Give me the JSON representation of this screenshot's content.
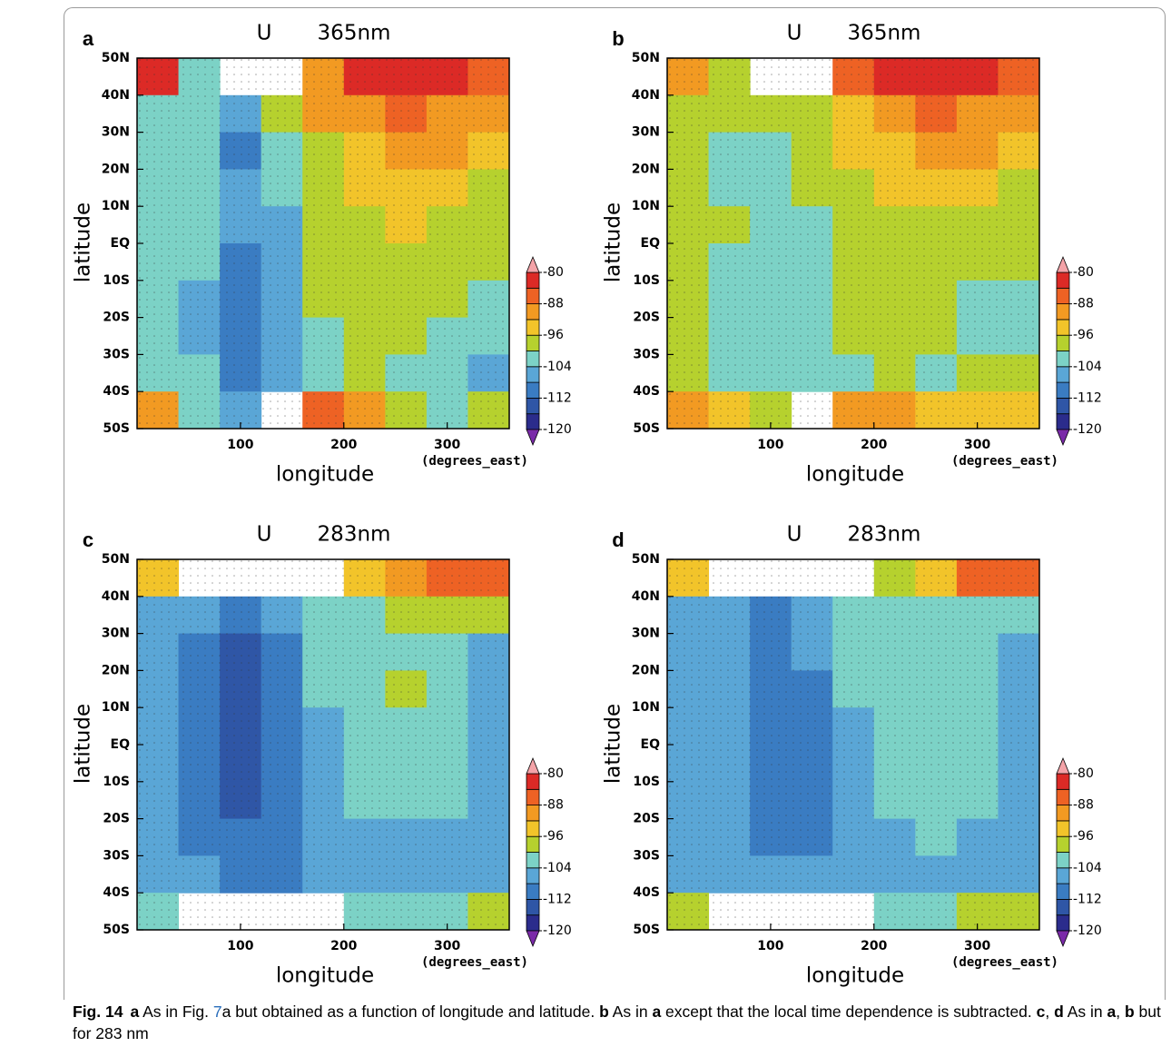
{
  "chart_data": [
    {
      "type": "contour",
      "panel": "a",
      "title": "U",
      "level": "365nm",
      "xlabel": "longitude",
      "xunit": "(degrees_east)",
      "ylabel": "latitude",
      "xlim": [
        0,
        360
      ],
      "xticks": [
        100,
        200,
        300
      ],
      "ylim": [
        -50,
        50
      ],
      "yticks": [
        {
          "value": 50,
          "label": "50N"
        },
        {
          "value": 40,
          "label": "40N"
        },
        {
          "value": 30,
          "label": "30N"
        },
        {
          "value": 20,
          "label": "20N"
        },
        {
          "value": 10,
          "label": "10N"
        },
        {
          "value": 0,
          "label": "EQ"
        },
        {
          "value": -10,
          "label": "10S"
        },
        {
          "value": -20,
          "label": "20S"
        },
        {
          "value": -30,
          "label": "30S"
        },
        {
          "value": -40,
          "label": "40S"
        },
        {
          "value": -50,
          "label": "50S"
        }
      ],
      "x": [
        20,
        60,
        100,
        140,
        180,
        220,
        260,
        300,
        340
      ],
      "y": [
        45,
        35,
        25,
        15,
        5,
        -5,
        -15,
        -25,
        -35,
        -45
      ],
      "z": [
        [
          -84,
          -102,
          null,
          null,
          -90,
          -84,
          -84,
          -84,
          -86
        ],
        [
          -102,
          -102,
          -108,
          -100,
          -92,
          -90,
          -88,
          -90,
          -92
        ],
        [
          -102,
          -102,
          -110,
          -102,
          -98,
          -94,
          -90,
          -92,
          -96
        ],
        [
          -102,
          -104,
          -108,
          -104,
          -98,
          -96,
          -94,
          -94,
          -98
        ],
        [
          -102,
          -104,
          -108,
          -106,
          -98,
          -98,
          -96,
          -98,
          -98
        ],
        [
          -104,
          -104,
          -110,
          -106,
          -100,
          -98,
          -98,
          -98,
          -100
        ],
        [
          -104,
          -106,
          -110,
          -106,
          -100,
          -98,
          -98,
          -100,
          -102
        ],
        [
          -104,
          -106,
          -112,
          -108,
          -102,
          -98,
          -100,
          -102,
          -104
        ],
        [
          -104,
          -104,
          -112,
          -106,
          -104,
          -100,
          -102,
          -104,
          -106
        ],
        [
          -92,
          -102,
          -108,
          null,
          -88,
          -90,
          -98,
          -102,
          -100
        ]
      ],
      "levels": [
        -120,
        -116,
        -112,
        -108,
        -104,
        -100,
        -96,
        -92,
        -88,
        -84,
        -80
      ],
      "colors": [
        "#2b2c8c",
        "#2f56a6",
        "#3a7cc2",
        "#5aa6d6",
        "#7cd2c6",
        "#b6d12e",
        "#f2c42a",
        "#f29a22",
        "#ee6224",
        "#dc2a26"
      ],
      "under_color": "#7a2aa8",
      "over_color": "#f4a3a8",
      "cticks": [
        -80,
        -88,
        -96,
        -104,
        -112,
        -120
      ]
    },
    {
      "type": "contour",
      "panel": "b",
      "title": "U",
      "level": "365nm",
      "xlabel": "longitude",
      "xunit": "(degrees_east)",
      "ylabel": "latitude",
      "xlim": [
        0,
        360
      ],
      "xticks": [
        100,
        200,
        300
      ],
      "ylim": [
        -50,
        50
      ],
      "yticks": [
        {
          "value": 50,
          "label": "50N"
        },
        {
          "value": 40,
          "label": "40N"
        },
        {
          "value": 30,
          "label": "30N"
        },
        {
          "value": 20,
          "label": "20N"
        },
        {
          "value": 10,
          "label": "10N"
        },
        {
          "value": 0,
          "label": "EQ"
        },
        {
          "value": -10,
          "label": "10S"
        },
        {
          "value": -20,
          "label": "20S"
        },
        {
          "value": -30,
          "label": "30S"
        },
        {
          "value": -40,
          "label": "40S"
        },
        {
          "value": -50,
          "label": "50S"
        }
      ],
      "x": [
        20,
        60,
        100,
        140,
        180,
        220,
        260,
        300,
        340
      ],
      "y": [
        45,
        35,
        25,
        15,
        5,
        -5,
        -15,
        -25,
        -35,
        -45
      ],
      "z": [
        [
          -90,
          -98,
          null,
          null,
          -88,
          -84,
          -84,
          -84,
          -86
        ],
        [
          -98,
          -100,
          -100,
          -98,
          -94,
          -90,
          -88,
          -90,
          -92
        ],
        [
          -100,
          -102,
          -102,
          -100,
          -96,
          -94,
          -92,
          -92,
          -96
        ],
        [
          -100,
          -102,
          -102,
          -100,
          -98,
          -96,
          -94,
          -96,
          -98
        ],
        [
          -100,
          -100,
          -104,
          -102,
          -100,
          -98,
          -98,
          -98,
          -100
        ],
        [
          -100,
          -102,
          -104,
          -102,
          -100,
          -98,
          -98,
          -100,
          -100
        ],
        [
          -100,
          -102,
          -104,
          -102,
          -100,
          -98,
          -98,
          -102,
          -102
        ],
        [
          -100,
          -102,
          -104,
          -102,
          -100,
          -98,
          -100,
          -102,
          -102
        ],
        [
          -98,
          -102,
          -104,
          -102,
          -102,
          -100,
          -102,
          -100,
          -100
        ],
        [
          -90,
          -96,
          -100,
          null,
          -90,
          -92,
          -96,
          -96,
          -94
        ]
      ],
      "levels": [
        -120,
        -116,
        -112,
        -108,
        -104,
        -100,
        -96,
        -92,
        -88,
        -84,
        -80
      ],
      "colors": [
        "#2b2c8c",
        "#2f56a6",
        "#3a7cc2",
        "#5aa6d6",
        "#7cd2c6",
        "#b6d12e",
        "#f2c42a",
        "#f29a22",
        "#ee6224",
        "#dc2a26"
      ],
      "under_color": "#7a2aa8",
      "over_color": "#f4a3a8",
      "cticks": [
        -80,
        -88,
        -96,
        -104,
        -112,
        -120
      ]
    },
    {
      "type": "contour",
      "panel": "c",
      "title": "U",
      "level": "283nm",
      "xlabel": "longitude",
      "xunit": "(degrees_east)",
      "ylabel": "latitude",
      "xlim": [
        0,
        360
      ],
      "xticks": [
        100,
        200,
        300
      ],
      "ylim": [
        -50,
        50
      ],
      "yticks": [
        {
          "value": 50,
          "label": "50N"
        },
        {
          "value": 40,
          "label": "40N"
        },
        {
          "value": 30,
          "label": "30N"
        },
        {
          "value": 20,
          "label": "20N"
        },
        {
          "value": 10,
          "label": "10N"
        },
        {
          "value": 0,
          "label": "EQ"
        },
        {
          "value": -10,
          "label": "10S"
        },
        {
          "value": -20,
          "label": "20S"
        },
        {
          "value": -30,
          "label": "30S"
        },
        {
          "value": -40,
          "label": "40S"
        },
        {
          "value": -50,
          "label": "50S"
        }
      ],
      "x": [
        20,
        60,
        100,
        140,
        180,
        220,
        260,
        300,
        340
      ],
      "y": [
        45,
        35,
        25,
        15,
        5,
        -5,
        -15,
        -25,
        -35,
        -45
      ],
      "z": [
        [
          -94,
          null,
          null,
          null,
          null,
          -96,
          -92,
          -86,
          -86
        ],
        [
          -106,
          -108,
          -112,
          -108,
          -104,
          -102,
          -100,
          -100,
          -100
        ],
        [
          -108,
          -110,
          -114,
          -110,
          -104,
          -104,
          -102,
          -104,
          -106
        ],
        [
          -108,
          -110,
          -114,
          -110,
          -104,
          -102,
          -100,
          -102,
          -106
        ],
        [
          -108,
          -110,
          -114,
          -112,
          -106,
          -102,
          -102,
          -102,
          -106
        ],
        [
          -108,
          -110,
          -114,
          -112,
          -106,
          -102,
          -102,
          -102,
          -106
        ],
        [
          -108,
          -110,
          -114,
          -112,
          -106,
          -104,
          -102,
          -104,
          -108
        ],
        [
          -108,
          -110,
          -112,
          -112,
          -108,
          -106,
          -106,
          -106,
          -108
        ],
        [
          -106,
          -108,
          -110,
          -110,
          -106,
          -106,
          -106,
          -106,
          -106
        ],
        [
          -102,
          null,
          null,
          null,
          null,
          -104,
          -104,
          -102,
          -100
        ]
      ],
      "levels": [
        -120,
        -116,
        -112,
        -108,
        -104,
        -100,
        -96,
        -92,
        -88,
        -84,
        -80
      ],
      "colors": [
        "#2b2c8c",
        "#2f56a6",
        "#3a7cc2",
        "#5aa6d6",
        "#7cd2c6",
        "#b6d12e",
        "#f2c42a",
        "#f29a22",
        "#ee6224",
        "#dc2a26"
      ],
      "under_color": "#7a2aa8",
      "over_color": "#f4a3a8",
      "cticks": [
        -80,
        -88,
        -96,
        -104,
        -112,
        -120
      ]
    },
    {
      "type": "contour",
      "panel": "d",
      "title": "U",
      "level": "283nm",
      "xlabel": "longitude",
      "xunit": "(degrees_east)",
      "ylabel": "latitude",
      "xlim": [
        0,
        360
      ],
      "xticks": [
        100,
        200,
        300
      ],
      "ylim": [
        -50,
        50
      ],
      "yticks": [
        {
          "value": 50,
          "label": "50N"
        },
        {
          "value": 40,
          "label": "40N"
        },
        {
          "value": 30,
          "label": "30N"
        },
        {
          "value": 20,
          "label": "20N"
        },
        {
          "value": 10,
          "label": "10N"
        },
        {
          "value": 0,
          "label": "EQ"
        },
        {
          "value": -10,
          "label": "10S"
        },
        {
          "value": -20,
          "label": "20S"
        },
        {
          "value": -30,
          "label": "30S"
        },
        {
          "value": -40,
          "label": "40S"
        },
        {
          "value": -50,
          "label": "50S"
        }
      ],
      "x": [
        20,
        60,
        100,
        140,
        180,
        220,
        260,
        300,
        340
      ],
      "y": [
        45,
        35,
        25,
        15,
        5,
        -5,
        -15,
        -25,
        -35,
        -45
      ],
      "z": [
        [
          -96,
          null,
          null,
          null,
          null,
          -98,
          -94,
          -88,
          -88
        ],
        [
          -106,
          -106,
          -110,
          -108,
          -104,
          -104,
          -102,
          -102,
          -102
        ],
        [
          -106,
          -108,
          -112,
          -108,
          -104,
          -104,
          -104,
          -104,
          -106
        ],
        [
          -108,
          -108,
          -112,
          -110,
          -104,
          -104,
          -102,
          -104,
          -106
        ],
        [
          -108,
          -108,
          -112,
          -110,
          -106,
          -102,
          -102,
          -102,
          -106
        ],
        [
          -108,
          -108,
          -112,
          -110,
          -106,
          -102,
          -102,
          -102,
          -106
        ],
        [
          -106,
          -108,
          -110,
          -110,
          -106,
          -104,
          -102,
          -104,
          -106
        ],
        [
          -106,
          -108,
          -110,
          -110,
          -106,
          -106,
          -104,
          -106,
          -106
        ],
        [
          -106,
          -106,
          -108,
          -108,
          -106,
          -106,
          -106,
          -106,
          -106
        ],
        [
          -100,
          null,
          null,
          null,
          null,
          -102,
          -102,
          -100,
          -98
        ]
      ],
      "levels": [
        -120,
        -116,
        -112,
        -108,
        -104,
        -100,
        -96,
        -92,
        -88,
        -84,
        -80
      ],
      "colors": [
        "#2b2c8c",
        "#2f56a6",
        "#3a7cc2",
        "#5aa6d6",
        "#7cd2c6",
        "#b6d12e",
        "#f2c42a",
        "#f29a22",
        "#ee6224",
        "#dc2a26"
      ],
      "under_color": "#7a2aa8",
      "over_color": "#f4a3a8",
      "cticks": [
        -80,
        -88,
        -96,
        -104,
        -112,
        -120
      ]
    }
  ],
  "caption": [
    {
      "text": "Fig. 14",
      "bold": true
    },
    {
      "text": "a",
      "bold": true
    },
    {
      "text": " As in Fig. "
    },
    {
      "text": "7",
      "link": true
    },
    {
      "text": "a but obtained as a function of longitude and latitude. "
    },
    {
      "text": "b",
      "bold": true
    },
    {
      "text": " As in "
    },
    {
      "text": "a",
      "bold": true
    },
    {
      "text": " except that the local time dependence is subtracted. "
    },
    {
      "text": "c",
      "bold": true
    },
    {
      "text": ", "
    },
    {
      "text": "d",
      "bold": true
    },
    {
      "text": " As in "
    },
    {
      "text": "a",
      "bold": true
    },
    {
      "text": ", "
    },
    {
      "text": "b",
      "bold": true
    },
    {
      "text": " but for 283 nm"
    }
  ]
}
